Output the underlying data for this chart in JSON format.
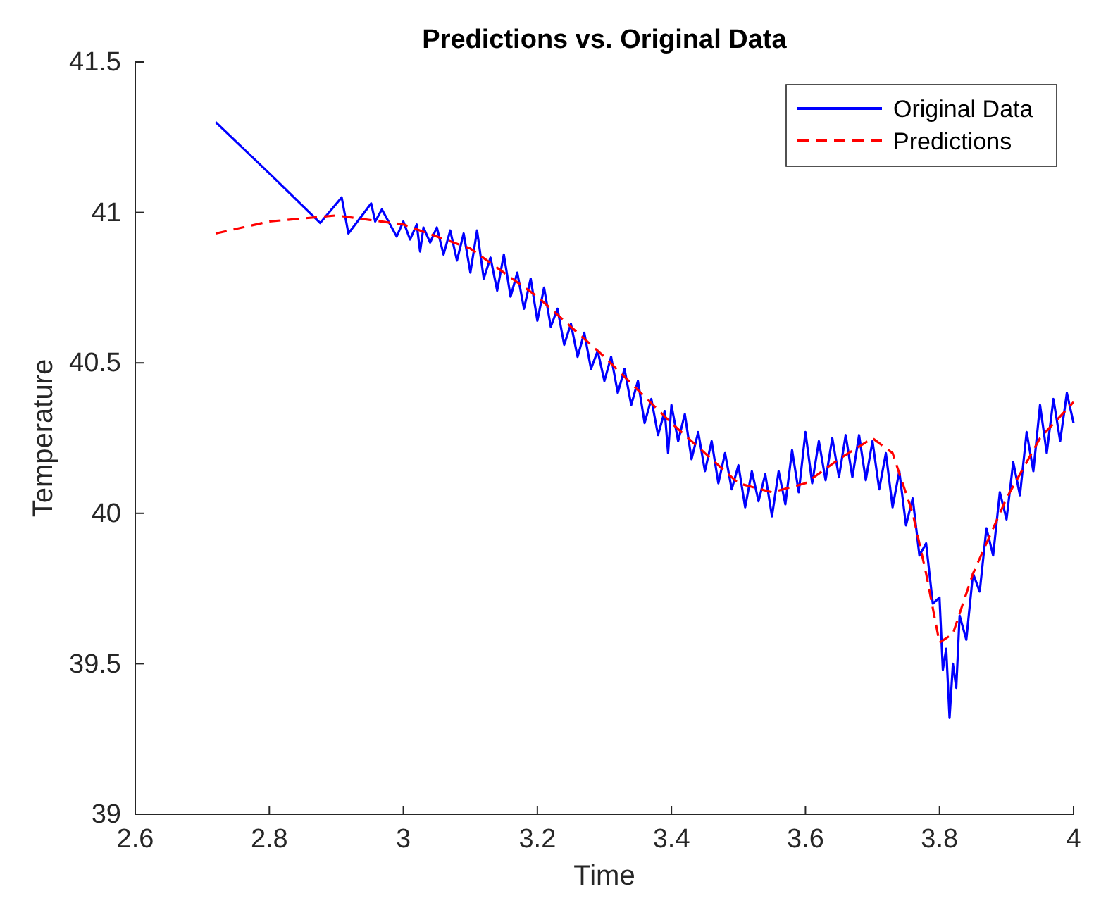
{
  "chart_data": {
    "type": "line",
    "title": "Predictions vs. Original Data",
    "xlabel": "Time",
    "ylabel": "Temperature",
    "xlim": [
      2.6,
      4
    ],
    "xticks": [
      2.6,
      2.8,
      3,
      3.2,
      3.4,
      3.6,
      3.8,
      4
    ],
    "ylim": [
      39,
      41.5
    ],
    "yticks": [
      39,
      39.5,
      40,
      40.5,
      41,
      41.5
    ],
    "legend": "top right",
    "grid": false,
    "series": [
      {
        "name": "Original Data",
        "color": "#0000ff",
        "line_style": "solid",
        "x": [
          2.72,
          2.8,
          2.876,
          2.908,
          2.918,
          2.952,
          2.958,
          2.968,
          2.99,
          3.0,
          3.01,
          3.02,
          3.025,
          3.03,
          3.04,
          3.05,
          3.06,
          3.07,
          3.08,
          3.09,
          3.1,
          3.11,
          3.12,
          3.13,
          3.14,
          3.15,
          3.16,
          3.17,
          3.18,
          3.19,
          3.2,
          3.21,
          3.22,
          3.23,
          3.24,
          3.25,
          3.26,
          3.27,
          3.28,
          3.29,
          3.3,
          3.31,
          3.32,
          3.33,
          3.34,
          3.35,
          3.36,
          3.37,
          3.38,
          3.39,
          3.395,
          3.4,
          3.41,
          3.42,
          3.43,
          3.44,
          3.45,
          3.46,
          3.47,
          3.48,
          3.49,
          3.5,
          3.51,
          3.52,
          3.53,
          3.54,
          3.55,
          3.56,
          3.57,
          3.58,
          3.59,
          3.6,
          3.61,
          3.62,
          3.63,
          3.64,
          3.65,
          3.66,
          3.67,
          3.68,
          3.69,
          3.7,
          3.71,
          3.72,
          3.73,
          3.74,
          3.75,
          3.76,
          3.77,
          3.78,
          3.79,
          3.8,
          3.805,
          3.81,
          3.815,
          3.82,
          3.825,
          3.83,
          3.84,
          3.85,
          3.86,
          3.87,
          3.88,
          3.89,
          3.9,
          3.91,
          3.92,
          3.93,
          3.94,
          3.95,
          3.96,
          3.97,
          3.98,
          3.99,
          4.0
        ],
        "values": [
          41.3,
          41.13,
          40.965,
          41.05,
          40.93,
          41.03,
          40.97,
          41.01,
          40.92,
          40.97,
          40.91,
          40.96,
          40.87,
          40.95,
          40.9,
          40.95,
          40.86,
          40.94,
          40.84,
          40.93,
          40.8,
          40.94,
          40.78,
          40.85,
          40.74,
          40.86,
          40.72,
          40.8,
          40.68,
          40.78,
          40.64,
          40.75,
          40.62,
          40.68,
          40.56,
          40.63,
          40.52,
          40.6,
          40.48,
          40.54,
          40.44,
          40.52,
          40.4,
          40.48,
          40.36,
          40.44,
          40.3,
          40.38,
          40.26,
          40.34,
          40.2,
          40.36,
          40.24,
          40.33,
          40.18,
          40.27,
          40.14,
          40.24,
          40.1,
          40.2,
          40.08,
          40.16,
          40.02,
          40.14,
          40.04,
          40.13,
          39.99,
          40.14,
          40.03,
          40.21,
          40.07,
          40.27,
          40.1,
          40.24,
          40.11,
          40.25,
          40.12,
          40.26,
          40.12,
          40.26,
          40.11,
          40.24,
          40.08,
          40.2,
          40.02,
          40.14,
          39.96,
          40.05,
          39.86,
          39.9,
          39.7,
          39.72,
          39.48,
          39.55,
          39.32,
          39.5,
          39.42,
          39.66,
          39.58,
          39.8,
          39.74,
          39.95,
          39.86,
          40.07,
          39.98,
          40.17,
          40.06,
          40.27,
          40.14,
          40.36,
          40.2,
          40.38,
          40.24,
          40.4,
          40.3
        ]
      },
      {
        "name": "Predictions",
        "color": "#ff0000",
        "line_style": "dashed",
        "x": [
          2.72,
          2.8,
          2.9,
          3.0,
          3.1,
          3.2,
          3.3,
          3.4,
          3.45,
          3.5,
          3.55,
          3.6,
          3.65,
          3.7,
          3.73,
          3.76,
          3.78,
          3.8,
          3.82,
          3.85,
          3.9,
          3.95,
          4.0
        ],
        "values": [
          40.93,
          40.97,
          40.99,
          40.96,
          40.88,
          40.72,
          40.52,
          40.3,
          40.2,
          40.1,
          40.07,
          40.1,
          40.18,
          40.25,
          40.2,
          40.0,
          39.8,
          39.57,
          39.6,
          39.8,
          40.05,
          40.25,
          40.37
        ]
      }
    ]
  }
}
